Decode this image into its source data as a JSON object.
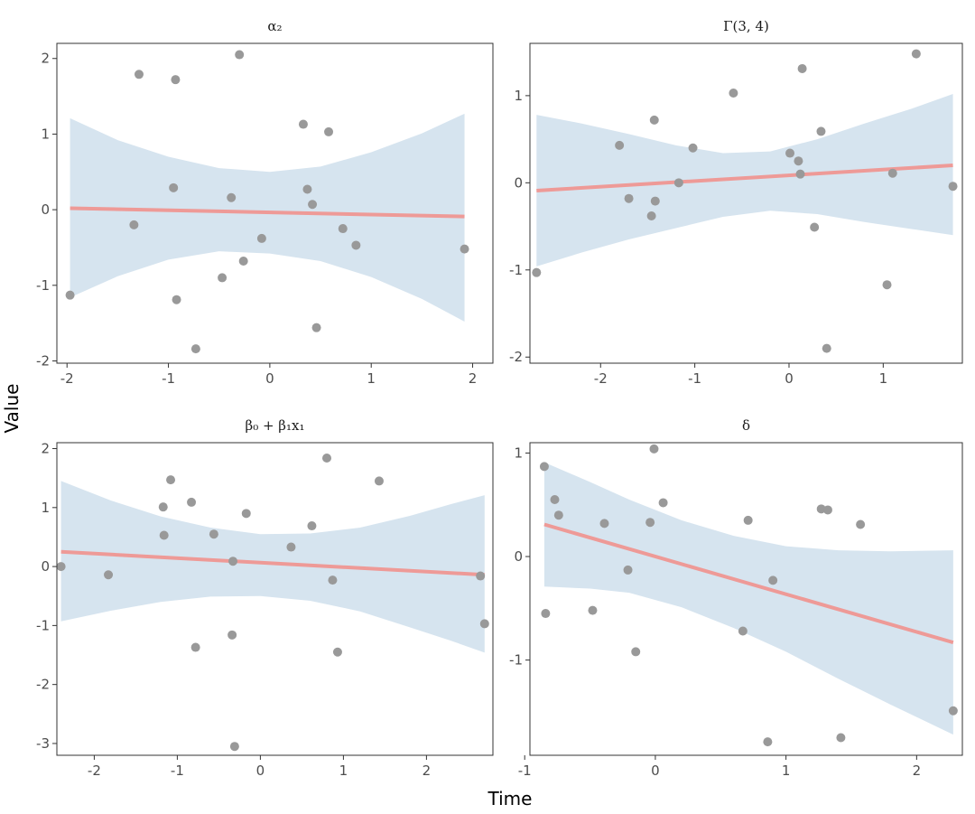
{
  "chart_data": {
    "type": "scatter",
    "xlabel": "Time",
    "ylabel": "Value",
    "colors": {
      "points": "#999999",
      "line": "#ee9a97",
      "band": "#d6e4ef"
    },
    "panels": [
      {
        "title": "α₂",
        "xlim": [
          -2.1,
          2.2
        ],
        "ylim": [
          -2.03,
          2.2
        ],
        "xticks": [
          -2,
          -1,
          0,
          1,
          2
        ],
        "yticks": [
          -2,
          -1,
          0,
          1,
          2
        ],
        "points": [
          [
            -1.97,
            -1.13
          ],
          [
            -1.34,
            -0.2
          ],
          [
            -1.29,
            1.79
          ],
          [
            -0.95,
            0.29
          ],
          [
            -0.93,
            1.72
          ],
          [
            -0.92,
            -1.19
          ],
          [
            -0.73,
            -1.84
          ],
          [
            -0.47,
            -0.9
          ],
          [
            -0.38,
            0.16
          ],
          [
            -0.3,
            2.05
          ],
          [
            -0.26,
            -0.68
          ],
          [
            -0.08,
            -0.38
          ],
          [
            0.33,
            1.13
          ],
          [
            0.37,
            0.27
          ],
          [
            0.42,
            0.07
          ],
          [
            0.46,
            -1.56
          ],
          [
            0.58,
            1.03
          ],
          [
            0.72,
            -0.25
          ],
          [
            0.85,
            -0.47
          ],
          [
            1.92,
            -0.52
          ]
        ],
        "fit": {
          "x": [
            -1.97,
            1.92
          ],
          "y": [
            0.02,
            -0.09
          ]
        },
        "band": {
          "x": [
            -1.97,
            -1.5,
            -1,
            -0.5,
            0,
            0.5,
            1,
            1.5,
            1.92
          ],
          "upper": [
            1.21,
            0.92,
            0.7,
            0.55,
            0.5,
            0.57,
            0.76,
            1.01,
            1.27
          ],
          "lower": [
            -1.16,
            -0.88,
            -0.66,
            -0.55,
            -0.58,
            -0.68,
            -0.89,
            -1.18,
            -1.48
          ]
        }
      },
      {
        "title": "Γ(3, 4)",
        "xlim": [
          -2.75,
          1.84
        ],
        "ylim": [
          -2.07,
          1.6
        ],
        "xticks": [
          -2,
          -1,
          0,
          1
        ],
        "yticks": [
          -2,
          -1,
          0,
          1
        ],
        "points": [
          [
            -2.68,
            -1.03
          ],
          [
            -1.8,
            0.43
          ],
          [
            -1.7,
            -0.18
          ],
          [
            -1.46,
            -0.38
          ],
          [
            -1.43,
            0.72
          ],
          [
            -1.42,
            -0.21
          ],
          [
            -1.17,
            0.0
          ],
          [
            -1.02,
            0.4
          ],
          [
            -0.59,
            1.03
          ],
          [
            0.01,
            0.34
          ],
          [
            0.1,
            0.25
          ],
          [
            0.12,
            0.1
          ],
          [
            0.14,
            1.31
          ],
          [
            0.27,
            -0.51
          ],
          [
            0.34,
            0.59
          ],
          [
            0.4,
            -1.9
          ],
          [
            1.04,
            -1.17
          ],
          [
            1.1,
            0.11
          ],
          [
            1.35,
            1.48
          ],
          [
            1.74,
            -0.04
          ]
        ],
        "fit": {
          "x": [
            -2.68,
            1.74
          ],
          "y": [
            -0.09,
            0.2
          ]
        },
        "band": {
          "x": [
            -2.68,
            -2.2,
            -1.7,
            -1.2,
            -0.7,
            -0.2,
            0.3,
            0.8,
            1.3,
            1.74
          ],
          "upper": [
            0.78,
            0.68,
            0.56,
            0.43,
            0.34,
            0.36,
            0.5,
            0.68,
            0.85,
            1.02
          ],
          "lower": [
            -0.96,
            -0.8,
            -0.65,
            -0.52,
            -0.39,
            -0.32,
            -0.36,
            -0.45,
            -0.53,
            -0.6
          ]
        }
      },
      {
        "title": "β₀ + β₁x₁",
        "xlim": [
          -2.45,
          2.8
        ],
        "ylim": [
          -3.2,
          2.1
        ],
        "xticks": [
          -2,
          -1,
          0,
          1,
          2
        ],
        "yticks": [
          -3,
          -2,
          -1,
          0,
          1,
          2
        ],
        "points": [
          [
            -2.4,
            0.0
          ],
          [
            -1.83,
            -0.14
          ],
          [
            -1.17,
            1.01
          ],
          [
            -1.16,
            0.53
          ],
          [
            -1.08,
            1.47
          ],
          [
            -0.83,
            1.09
          ],
          [
            -0.78,
            -1.37
          ],
          [
            -0.56,
            0.55
          ],
          [
            -0.34,
            -1.16
          ],
          [
            -0.33,
            0.09
          ],
          [
            -0.31,
            -3.05
          ],
          [
            -0.17,
            0.9
          ],
          [
            0.37,
            0.33
          ],
          [
            0.62,
            0.69
          ],
          [
            0.8,
            1.84
          ],
          [
            0.87,
            -0.23
          ],
          [
            0.93,
            -1.45
          ],
          [
            1.43,
            1.45
          ],
          [
            2.65,
            -0.16
          ],
          [
            2.7,
            -0.97
          ]
        ],
        "fit": {
          "x": [
            -2.4,
            2.7
          ],
          "y": [
            0.25,
            -0.14
          ]
        },
        "band": {
          "x": [
            -2.4,
            -1.8,
            -1.2,
            -0.6,
            0,
            0.6,
            1.2,
            1.8,
            2.3,
            2.7
          ],
          "upper": [
            1.45,
            1.12,
            0.85,
            0.66,
            0.55,
            0.56,
            0.66,
            0.86,
            1.06,
            1.21
          ],
          "lower": [
            -0.93,
            -0.75,
            -0.6,
            -0.51,
            -0.5,
            -0.58,
            -0.76,
            -1.03,
            -1.26,
            -1.46
          ]
        }
      },
      {
        "title": "δ",
        "xlim": [
          -0.96,
          2.35
        ],
        "ylim": [
          -1.92,
          1.1
        ],
        "xticks": [
          -1,
          0,
          1,
          2
        ],
        "yticks": [
          -1,
          0,
          1
        ],
        "points": [
          [
            -0.85,
            0.87
          ],
          [
            -0.84,
            -0.55
          ],
          [
            -0.77,
            0.55
          ],
          [
            -0.74,
            0.4
          ],
          [
            -0.48,
            -0.52
          ],
          [
            -0.39,
            0.32
          ],
          [
            -0.21,
            -0.13
          ],
          [
            -0.15,
            -0.92
          ],
          [
            -0.04,
            0.33
          ],
          [
            -0.01,
            1.04
          ],
          [
            0.06,
            0.52
          ],
          [
            0.67,
            -0.72
          ],
          [
            0.71,
            0.35
          ],
          [
            0.86,
            -1.79
          ],
          [
            0.9,
            -0.23
          ],
          [
            1.27,
            0.46
          ],
          [
            1.32,
            0.45
          ],
          [
            1.42,
            -1.75
          ],
          [
            1.57,
            0.31
          ],
          [
            2.28,
            -1.49
          ]
        ],
        "fit": {
          "x": [
            -0.85,
            2.28
          ],
          "y": [
            0.31,
            -0.83
          ]
        },
        "band": {
          "x": [
            -0.85,
            -0.5,
            -0.2,
            0.2,
            0.6,
            1.0,
            1.4,
            1.8,
            2.28
          ],
          "upper": [
            0.91,
            0.72,
            0.55,
            0.35,
            0.2,
            0.1,
            0.06,
            0.05,
            0.06
          ],
          "lower": [
            -0.29,
            -0.31,
            -0.35,
            -0.49,
            -0.69,
            -0.92,
            -1.18,
            -1.43,
            -1.72
          ]
        }
      }
    ]
  }
}
